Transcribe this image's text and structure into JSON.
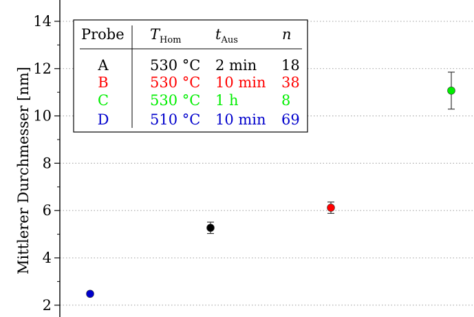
{
  "chart_data": {
    "type": "scatter",
    "ylabel": "Mittlerer Durchmesser [nm]",
    "ylim": [
      1.5,
      14.9
    ],
    "y_ticks": [
      "2",
      "4",
      "6",
      "8",
      "10",
      "12",
      "14"
    ],
    "grid": "horizontal-dotted",
    "legend_position": "top-left",
    "series": [
      {
        "name": "D",
        "color": "#0000cc",
        "y": 2.48,
        "error": 0.0
      },
      {
        "name": "A",
        "color": "#000000",
        "y": 5.27,
        "error": 0.24
      },
      {
        "name": "B",
        "color": "#ff0000",
        "y": 6.12,
        "error": 0.24
      },
      {
        "name": "C",
        "color": "#00ee00",
        "y": 11.07,
        "error": 0.78
      }
    ],
    "point_order": [
      "D",
      "A",
      "B",
      "C"
    ],
    "legend_table": {
      "headers": {
        "probe": "Probe",
        "t_hom_main": "T",
        "t_hom_sub": "Hom",
        "t_aus_main": "t",
        "t_aus_sub": "Aus",
        "n": "n"
      },
      "rows": [
        {
          "probe": "A",
          "t_hom": "530 °C",
          "t_aus": "2 min",
          "n": "18",
          "color": "#000000"
        },
        {
          "probe": "B",
          "t_hom": "530 °C",
          "t_aus": "10 min",
          "n": "38",
          "color": "#ff0000"
        },
        {
          "probe": "C",
          "t_hom": "530 °C",
          "t_aus": "1 h",
          "n": "8",
          "color": "#00ee00"
        },
        {
          "probe": "D",
          "t_hom": "510 °C",
          "t_aus": "10 min",
          "n": "69",
          "color": "#0000cc"
        }
      ]
    }
  }
}
